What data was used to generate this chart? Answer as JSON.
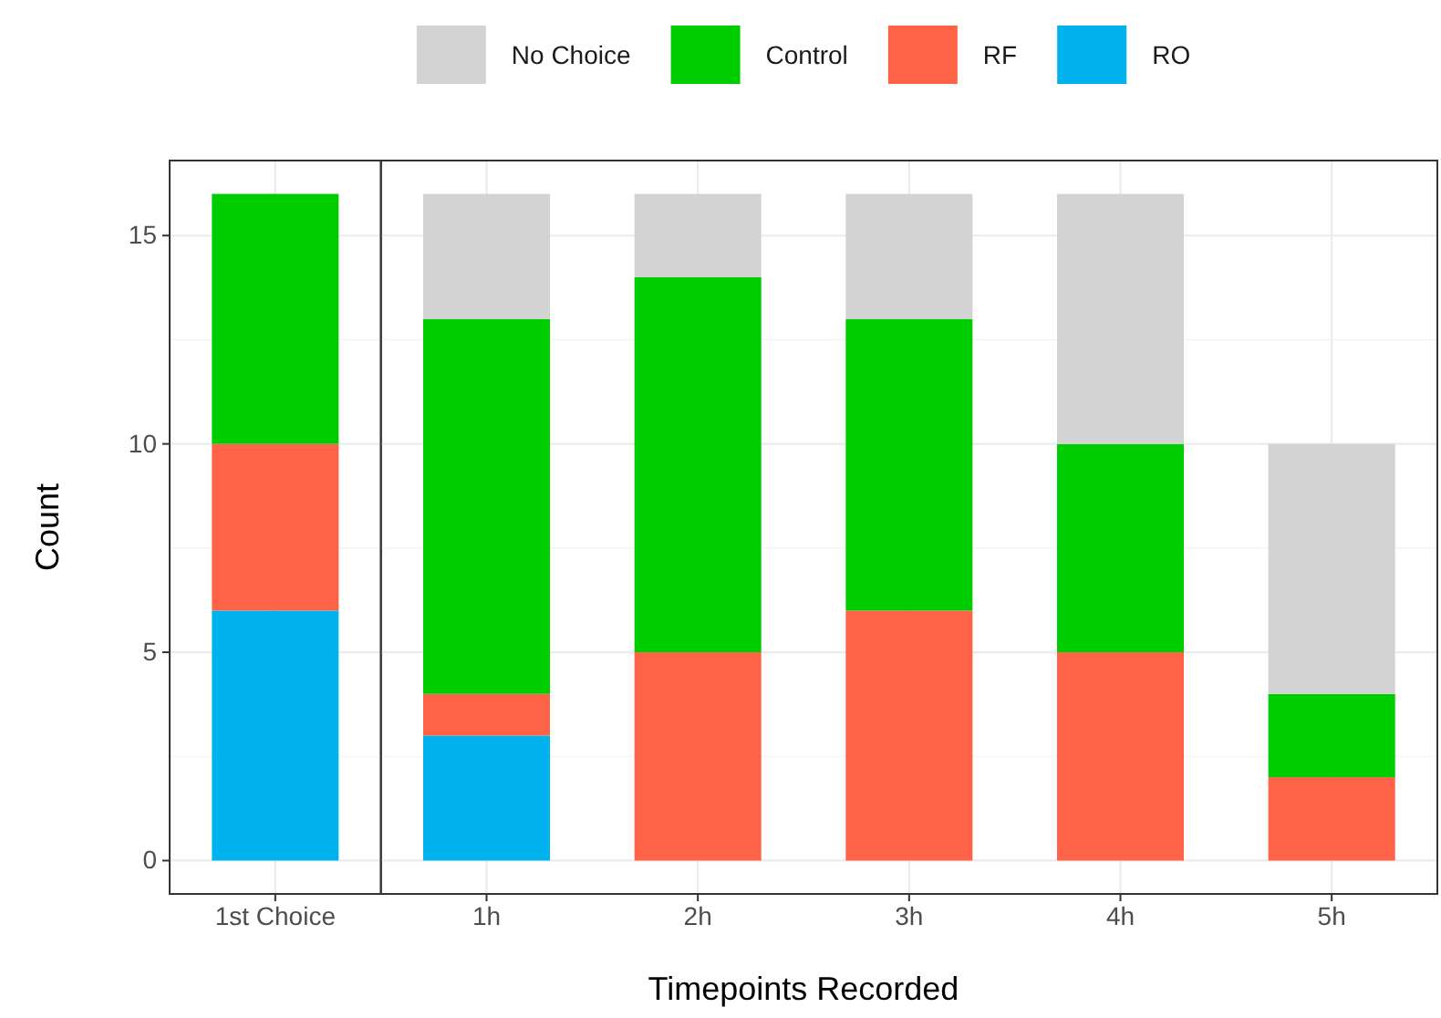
{
  "chart_data": [
    {
      "type": "bar",
      "stacked": true,
      "ylabel": "Count",
      "categories": [
        "1st Choice"
      ],
      "series": [
        {
          "color": "#00b2ee",
          "values": [
            6
          ]
        },
        {
          "color": "#ff6347",
          "values": [
            4
          ]
        },
        {
          "color": "#00cd00",
          "values": [
            6
          ]
        }
      ],
      "ylim": [
        -0.8,
        16.8
      ],
      "yticks": [
        0,
        5,
        10,
        15
      ],
      "grid": true
    },
    {
      "type": "bar",
      "stacked": true,
      "xlabel": "Timepoints Recorded",
      "categories": [
        "1h",
        "2h",
        "3h",
        "4h",
        "5h"
      ],
      "series": [
        {
          "name": "RO",
          "color": "#00b2ee",
          "values": [
            3,
            0,
            0,
            0,
            0
          ]
        },
        {
          "name": "RF",
          "color": "#ff6347",
          "values": [
            1,
            5,
            6,
            5,
            2
          ]
        },
        {
          "name": "Control",
          "color": "#00cd00",
          "values": [
            9,
            9,
            7,
            5,
            2
          ]
        },
        {
          "name": "No Choice",
          "color": "#d3d3d3",
          "values": [
            3,
            2,
            3,
            6,
            6
          ]
        }
      ],
      "ylim": [
        -0.8,
        16.8
      ],
      "yticks": [
        0,
        5,
        10,
        15
      ],
      "grid": true,
      "tick_labels": "x",
      "legend": "top"
    }
  ]
}
